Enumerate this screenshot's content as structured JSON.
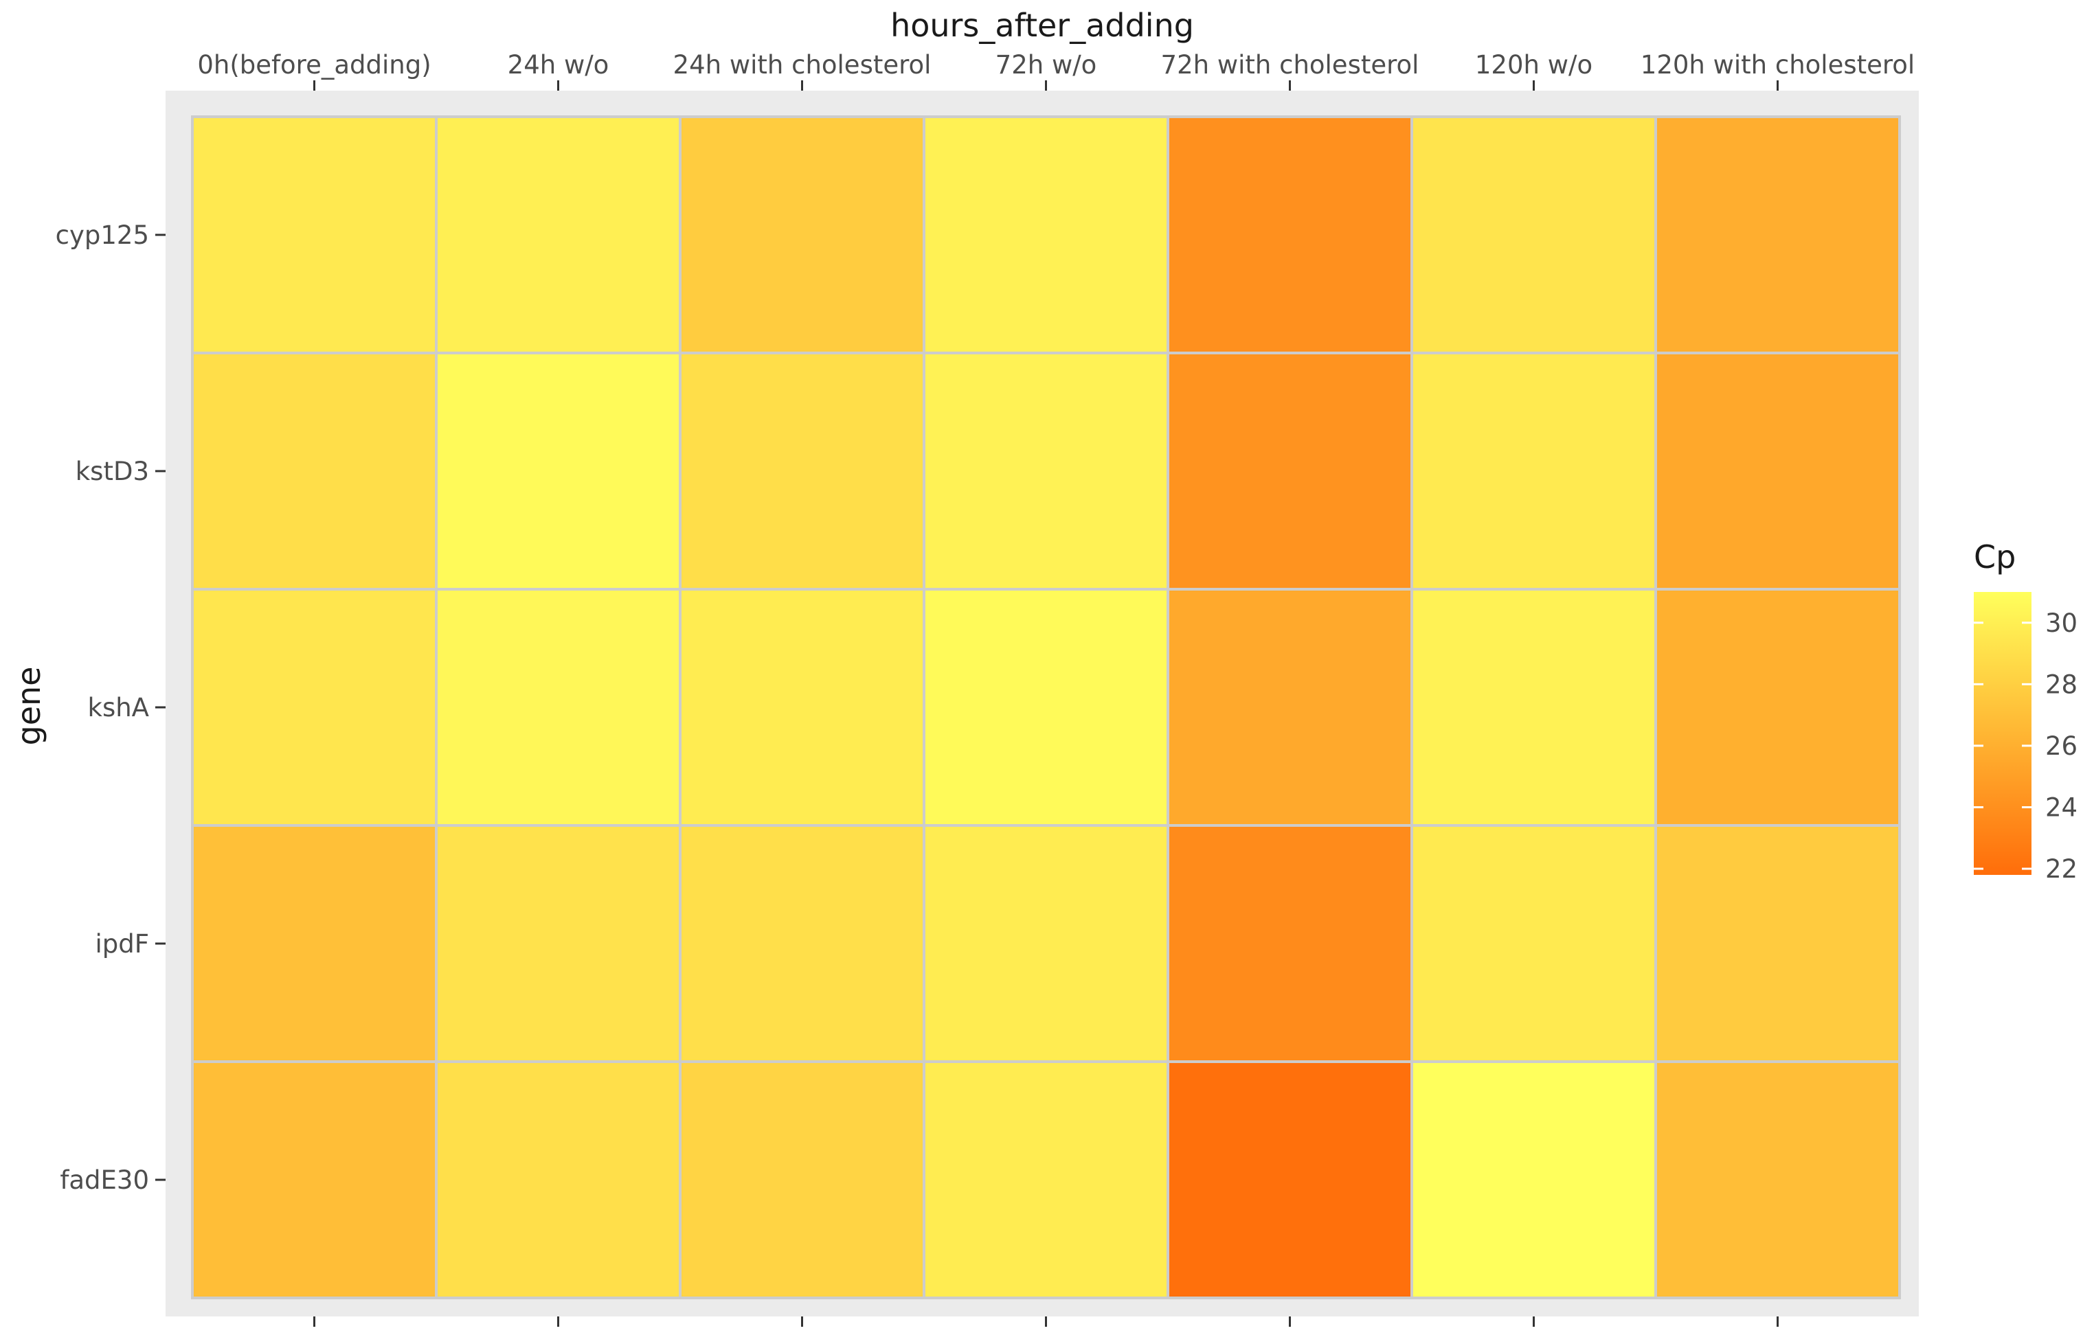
{
  "chart_data": {
    "type": "heatmap",
    "title": "",
    "xlabel": "hours_after_adding",
    "ylabel": "gene",
    "x_axis_position": "top",
    "x_categories": [
      "0h(before_adding)",
      "24h w/o",
      "24h with cholesterol",
      "72h w/o",
      "72h with cholesterol",
      "120h w/o",
      "120h with cholesterol"
    ],
    "y_categories": [
      "cyp125",
      "kstD3",
      "kshA",
      "ipdF",
      "fadE30"
    ],
    "values": [
      [
        29.6,
        30.0,
        27.8,
        30.1,
        24.0,
        29.3,
        25.9
      ],
      [
        28.9,
        30.7,
        28.9,
        30.2,
        24.2,
        29.7,
        25.5
      ],
      [
        29.4,
        30.5,
        29.8,
        30.7,
        25.6,
        30.2,
        26.0
      ],
      [
        27.0,
        29.2,
        29.0,
        29.8,
        23.7,
        29.7,
        27.7
      ],
      [
        26.9,
        29.0,
        28.3,
        29.8,
        22.0,
        31.0,
        26.9
      ]
    ],
    "legend": {
      "title": "Cp",
      "position": "right",
      "ticks": [
        22,
        24,
        26,
        28,
        30
      ],
      "range": [
        21.8,
        31.0
      ],
      "low_color": "#ff6d0a",
      "high_color": "#ffff5c"
    },
    "grid": true,
    "panel_background": "#ebebeb",
    "tile_border": "#cccccc"
  }
}
